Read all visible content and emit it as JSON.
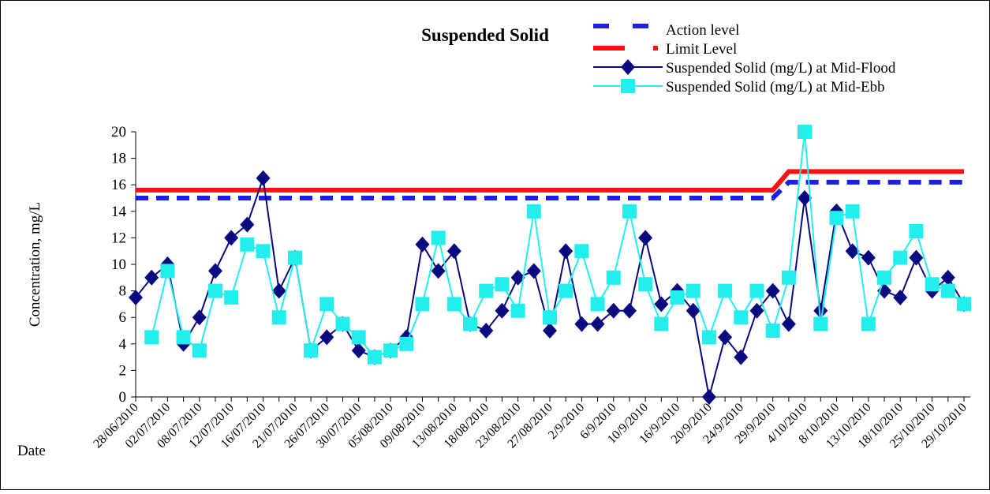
{
  "chart_data": {
    "type": "line",
    "title": "Suspended Solid",
    "y_label": "Concentration, mg/L",
    "x_label": "Date",
    "categories": [
      "28/06/2010",
      null,
      "02/07/2010",
      null,
      "08/07/2010",
      null,
      "12/07/2010",
      null,
      "16/07/2010",
      null,
      "21/07/2010",
      null,
      "26/07/2010",
      null,
      "30/07/2010",
      null,
      "05/08/2010",
      null,
      "09/08/2010",
      null,
      "13/08/2010",
      null,
      "18/08/2010",
      null,
      "23/08/2010",
      null,
      "27/08/2010",
      null,
      "2/9/2010",
      null,
      "6/9/2010",
      null,
      "10/9/2010",
      null,
      "16/9/2010",
      null,
      "20/9/2010",
      null,
      "24/9/2010",
      null,
      "29/9/2010",
      null,
      "4/10/2010",
      null,
      "8/10/2010",
      null,
      "13/10/2010",
      null,
      "18/10/2010",
      null,
      "25/10/2010",
      null,
      "29/10/2010"
    ],
    "series": [
      {
        "name": "Action level",
        "color": "#1f1fe0",
        "style": "dashed",
        "values": [
          15,
          15,
          15,
          15,
          15,
          15,
          15,
          15,
          15,
          15,
          15,
          15,
          15,
          15,
          15,
          15,
          15,
          15,
          15,
          15,
          15,
          15,
          15,
          15,
          15,
          15,
          15,
          15,
          15,
          15,
          15,
          15,
          15,
          15,
          15,
          15,
          15,
          15,
          15,
          15,
          15,
          16.2,
          16.2,
          16.2,
          16.2,
          16.2,
          16.2,
          16.2,
          16.2,
          16.2,
          16.2,
          16.2,
          16.2
        ]
      },
      {
        "name": "Limit Level",
        "color": "#ff1010",
        "style": "solid-thick",
        "values": [
          15.6,
          15.6,
          15.6,
          15.6,
          15.6,
          15.6,
          15.6,
          15.6,
          15.6,
          15.6,
          15.6,
          15.6,
          15.6,
          15.6,
          15.6,
          15.6,
          15.6,
          15.6,
          15.6,
          15.6,
          15.6,
          15.6,
          15.6,
          15.6,
          15.6,
          15.6,
          15.6,
          15.6,
          15.6,
          15.6,
          15.6,
          15.6,
          15.6,
          15.6,
          15.6,
          15.6,
          15.6,
          15.6,
          15.6,
          15.6,
          15.6,
          17,
          17,
          17,
          17,
          17,
          17,
          17,
          17,
          17,
          17,
          17,
          17
        ]
      },
      {
        "name": "Suspended Solid (mg/L) at Mid-Flood",
        "color": "#0a0a80",
        "marker": "diamond",
        "values": [
          7.5,
          9,
          10,
          4,
          6,
          9.5,
          12,
          13,
          16.5,
          8,
          10.5,
          3.5,
          4.5,
          5.5,
          3.5,
          3,
          3.5,
          4.5,
          11.5,
          9.5,
          11,
          5.5,
          5,
          6.5,
          9,
          9.5,
          5,
          11,
          5.5,
          5.5,
          6.5,
          6.5,
          12,
          7,
          8,
          6.5,
          0,
          4.5,
          3,
          6.5,
          8,
          5.5,
          15,
          6.5,
          14,
          11,
          10.5,
          8,
          7.5,
          10.5,
          8,
          9,
          7
        ]
      },
      {
        "name": "Suspended Solid (mg/L) at Mid-Ebb",
        "color": "#22eeee",
        "marker": "square",
        "values": [
          null,
          4.5,
          9.5,
          4.5,
          3.5,
          8,
          7.5,
          11.5,
          11,
          6,
          10.5,
          3.5,
          7,
          5.5,
          4.5,
          3,
          3.5,
          4,
          7,
          12,
          7,
          5.5,
          8,
          8.5,
          6.5,
          14,
          6,
          8,
          11,
          7,
          9,
          14,
          8.5,
          5.5,
          7.5,
          8,
          4.5,
          8,
          6,
          8,
          5,
          9,
          20,
          5.5,
          13.5,
          14,
          5.5,
          9,
          10.5,
          12.5,
          8.5,
          8,
          7
        ]
      }
    ],
    "ylim": [
      0,
      20
    ],
    "yticks": [
      0,
      2,
      4,
      6,
      8,
      10,
      12,
      14,
      16,
      18,
      20
    ]
  }
}
